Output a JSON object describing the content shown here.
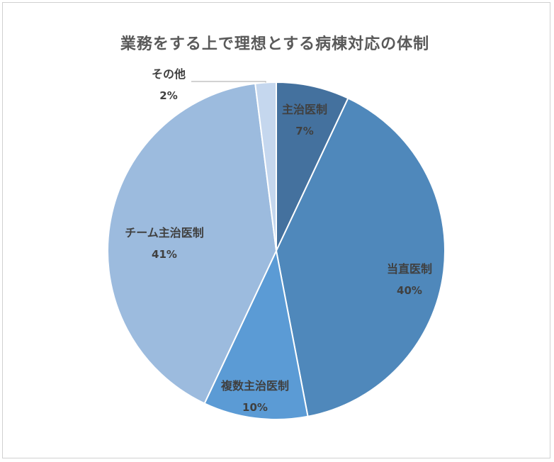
{
  "chart_data": {
    "type": "pie",
    "title": "業務をする上で理想とする病棟対応の体制",
    "categories": [
      "主治医制",
      "当直医制",
      "複数主治医制",
      "チーム主治医制",
      "その他"
    ],
    "values": [
      7,
      40,
      10,
      41,
      2
    ],
    "value_labels": [
      "7%",
      "40%",
      "10%",
      "41%",
      "2%"
    ],
    "colors": [
      "#44719e",
      "#4f88bb",
      "#5b9bd5",
      "#9cbbde",
      "#c5d7ee"
    ],
    "start_angle": "12 o'clock",
    "direction": "clockwise",
    "legend": "none"
  }
}
